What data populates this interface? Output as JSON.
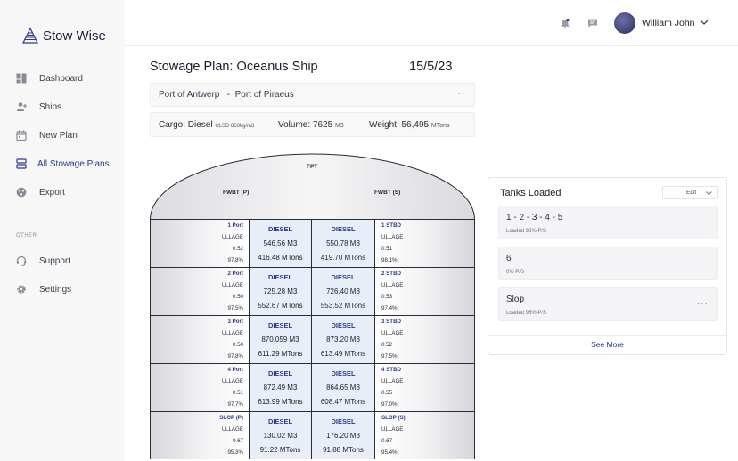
{
  "brand": {
    "name": "Stow Wise"
  },
  "sidebar": {
    "items": [
      {
        "label": "Dashboard",
        "icon": "dashboard-icon"
      },
      {
        "label": "Ships",
        "icon": "add-user-icon"
      },
      {
        "label": "New Plan",
        "icon": "calendar-icon"
      },
      {
        "label": "All Stowage Plans",
        "icon": "stack-icon",
        "active": true
      },
      {
        "label": "Export",
        "icon": "export-icon"
      }
    ],
    "section_label": "OTHER",
    "other_items": [
      {
        "label": "Support",
        "icon": "headset-icon"
      },
      {
        "label": "Settings",
        "icon": "gear-icon"
      }
    ]
  },
  "header": {
    "user_name": "William John",
    "icons": [
      "notification-bell-icon",
      "chat-icon",
      "chevron-down-icon"
    ]
  },
  "plan": {
    "title": "Stowage Plan: Oceanus Ship",
    "date": "15/5/23",
    "route": "Port of Antwerp   -  Port of Piraeus",
    "cargo_label": "Cargo: Diesel",
    "cargo_spec": "ULSD 850kg/m3",
    "volume_label": "Volume: 7625",
    "volume_unit": "M3",
    "weight_label": "Weight: 56,495",
    "weight_unit": "MTons",
    "more_icon": "···"
  },
  "ship": {
    "fpt_label": "FPT",
    "fwbt_p_label": "FWBT (P)",
    "fwbt_s_label": "FWBT (S)",
    "rows": [
      {
        "port_name": "1 Port",
        "port_ullage_label": "ULLAGE",
        "port_ullage": "0.52",
        "port_pct": "97.8%",
        "c1_fuel": "DIESEL",
        "c1_vol": "546.56 M3",
        "c1_wt": "416.48 MTons",
        "c2_fuel": "DIESEL",
        "c2_vol": "550.78 M3",
        "c2_wt": "419.70 MTons",
        "stbd_name": "1 STBD",
        "stbd_ullage_label": "ULLAGE",
        "stbd_ullage": "0.51",
        "stbd_pct": "98.1%"
      },
      {
        "port_name": "2 Port",
        "port_ullage_label": "ULLAGE",
        "port_ullage": "0.50",
        "port_pct": "97.5%",
        "c1_fuel": "DIESEL",
        "c1_vol": "725.28 M3",
        "c1_wt": "552.67 MTons",
        "c2_fuel": "DIESEL",
        "c2_vol": "726.40 M3",
        "c2_wt": "553.52 MTons",
        "stbd_name": "2 STBD",
        "stbd_ullage_label": "ULLAGE",
        "stbd_ullage": "0.53",
        "stbd_pct": "97.4%"
      },
      {
        "port_name": "3 Port",
        "port_ullage_label": "ULLAGE",
        "port_ullage": "0.50",
        "port_pct": "97.8%",
        "c1_fuel": "DIESEL",
        "c1_vol": "870.059 M3",
        "c1_wt": "611.29 MTons",
        "c2_fuel": "DIESEL",
        "c2_vol": "873.20 M3",
        "c2_wt": "613.49 MTons",
        "stbd_name": "3 STBD",
        "stbd_ullage_label": "ULLAGE",
        "stbd_ullage": "0.52",
        "stbd_pct": "97.5%"
      },
      {
        "port_name": "4 Port",
        "port_ullage_label": "ULLAGE",
        "port_ullage": "0.51",
        "port_pct": "97.7%",
        "c1_fuel": "DIESEL",
        "c1_vol": "872.49 M3",
        "c1_wt": "613.99 MTons",
        "c2_fuel": "DIESEL",
        "c2_vol": "864.65 M3",
        "c2_wt": "608.47 MTons",
        "stbd_name": "4 STBD",
        "stbd_ullage_label": "ULLAGE",
        "stbd_ullage": "0.55",
        "stbd_pct": "97.0%"
      },
      {
        "port_name": "SLOP (P)",
        "port_ullage_label": "ULLAGE",
        "port_ullage": "0.67",
        "port_pct": "95.3%",
        "c1_fuel": "DIESEL",
        "c1_vol": "130.02 M3",
        "c1_wt": "91.22 MTons",
        "c2_fuel": "DIESEL",
        "c2_vol": "176.20 M3",
        "c2_wt": "91.88 MTons",
        "stbd_name": "SLOP (S)",
        "stbd_ullage_label": "ULLAGE",
        "stbd_ullage": "0.67",
        "stbd_pct": "95.4%"
      }
    ]
  },
  "tanks_panel": {
    "title": "Tanks Loaded",
    "edit_label": "Edit",
    "cards": [
      {
        "name": "1 - 2 - 3 - 4 - 5",
        "sub": "Loaded 98% P/S"
      },
      {
        "name": "6",
        "sub": "0% P/S"
      },
      {
        "name": "Slop",
        "sub": "Loaded 95% P/S"
      }
    ],
    "see_more": "See More"
  },
  "colors": {
    "accent": "#2d3a8c",
    "cargo_cell": "#e8eef8",
    "sidebar_bg": "#f7f7f8"
  }
}
